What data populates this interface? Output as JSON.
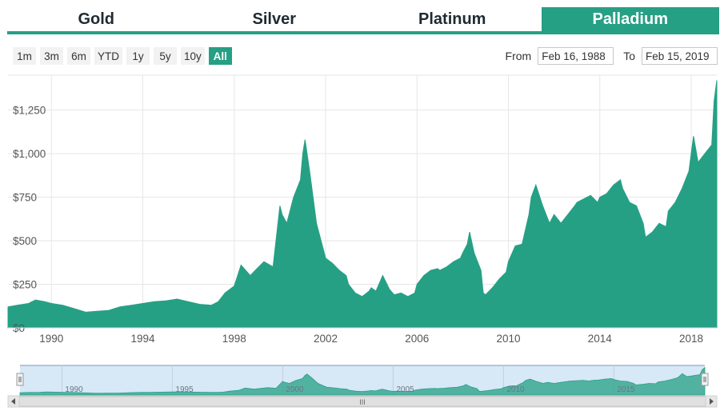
{
  "tabs": [
    {
      "label": "Gold",
      "active": false
    },
    {
      "label": "Silver",
      "active": false
    },
    {
      "label": "Platinum",
      "active": false
    },
    {
      "label": "Palladium",
      "active": true
    }
  ],
  "range_buttons": [
    {
      "label": "1m",
      "active": false
    },
    {
      "label": "3m",
      "active": false
    },
    {
      "label": "6m",
      "active": false
    },
    {
      "label": "YTD",
      "active": false
    },
    {
      "label": "1y",
      "active": false
    },
    {
      "label": "5y",
      "active": false
    },
    {
      "label": "10y",
      "active": false
    },
    {
      "label": "All",
      "active": true
    }
  ],
  "date_range": {
    "from_label": "From",
    "from_value": "Feb 16, 1988",
    "to_label": "To",
    "to_value": "Feb 15, 2019"
  },
  "colors": {
    "accent": "#26a085",
    "navigator_fill": "#d7e8f7"
  },
  "chart_data": {
    "type": "area",
    "series": [
      {
        "color": "#26a085",
        "x": [
          1988.1,
          1988.5,
          1989.0,
          1989.3,
          1989.7,
          1990.0,
          1990.5,
          1991.0,
          1991.5,
          1992.0,
          1992.5,
          1993.0,
          1993.5,
          1994.0,
          1994.5,
          1995.0,
          1995.5,
          1996.0,
          1996.5,
          1997.0,
          1997.3,
          1997.6,
          1998.0,
          1998.3,
          1998.7,
          1999.0,
          1999.3,
          1999.7,
          2000.0,
          2000.1,
          2000.3,
          2000.6,
          2000.9,
          2001.0,
          2001.1,
          2001.3,
          2001.6,
          2001.9,
          2002.0,
          2002.3,
          2002.6,
          2002.9,
          2003.0,
          2003.3,
          2003.6,
          2003.9,
          2004.0,
          2004.2,
          2004.5,
          2004.8,
          2005.0,
          2005.3,
          2005.6,
          2005.9,
          2006.0,
          2006.3,
          2006.6,
          2006.9,
          2007.0,
          2007.3,
          2007.6,
          2007.9,
          2008.0,
          2008.2,
          2008.3,
          2008.5,
          2008.8,
          2008.9,
          2009.0,
          2009.3,
          2009.6,
          2009.9,
          2010.0,
          2010.3,
          2010.6,
          2010.9,
          2011.0,
          2011.2,
          2011.5,
          2011.8,
          2012.0,
          2012.3,
          2012.6,
          2012.9,
          2013.0,
          2013.3,
          2013.6,
          2013.9,
          2014.0,
          2014.3,
          2014.6,
          2014.9,
          2015.0,
          2015.3,
          2015.6,
          2015.9,
          2016.0,
          2016.3,
          2016.6,
          2016.9,
          2017.0,
          2017.3,
          2017.6,
          2017.9,
          2018.0,
          2018.1,
          2018.3,
          2018.6,
          2018.9,
          2019.0,
          2019.12
        ],
        "values": [
          120,
          130,
          140,
          160,
          150,
          140,
          130,
          110,
          90,
          95,
          100,
          120,
          130,
          140,
          150,
          155,
          165,
          150,
          135,
          130,
          150,
          200,
          240,
          360,
          300,
          340,
          380,
          350,
          700,
          650,
          600,
          750,
          850,
          1000,
          1080,
          900,
          600,
          450,
          400,
          370,
          330,
          300,
          250,
          200,
          180,
          210,
          230,
          210,
          300,
          220,
          190,
          200,
          180,
          200,
          250,
          300,
          330,
          340,
          330,
          350,
          380,
          400,
          430,
          480,
          550,
          430,
          330,
          200,
          190,
          230,
          280,
          320,
          380,
          470,
          480,
          650,
          750,
          820,
          700,
          600,
          650,
          600,
          650,
          700,
          720,
          740,
          760,
          720,
          750,
          770,
          820,
          850,
          800,
          720,
          700,
          600,
          520,
          550,
          600,
          580,
          670,
          720,
          800,
          900,
          1000,
          1100,
          950,
          1000,
          1050,
          1300,
          1420
        ]
      }
    ],
    "ylim": [
      0,
      1450
    ],
    "xlim": [
      1988.1,
      2019.12
    ],
    "y_ticks": [
      {
        "value": 0,
        "label": "$0"
      },
      {
        "value": 250,
        "label": "$250"
      },
      {
        "value": 500,
        "label": "$500"
      },
      {
        "value": 750,
        "label": "$750"
      },
      {
        "value": 1000,
        "label": "$1,000"
      },
      {
        "value": 1250,
        "label": "$1,250"
      }
    ],
    "x_ticks": [
      {
        "value": 1990,
        "label": "1990"
      },
      {
        "value": 1994,
        "label": "1994"
      },
      {
        "value": 1998,
        "label": "1998"
      },
      {
        "value": 2002,
        "label": "2002"
      },
      {
        "value": 2006,
        "label": "2006"
      },
      {
        "value": 2010,
        "label": "2010"
      },
      {
        "value": 2014,
        "label": "2014"
      },
      {
        "value": 2018,
        "label": "2018"
      }
    ],
    "navigator_ticks": [
      {
        "value": 1990,
        "label": "1990"
      },
      {
        "value": 1995,
        "label": "1995"
      },
      {
        "value": 2000,
        "label": "2000"
      },
      {
        "value": 2005,
        "label": "2005"
      },
      {
        "value": 2010,
        "label": "2010"
      },
      {
        "value": 2015,
        "label": "2015"
      }
    ],
    "grid": true,
    "scrollbar_grip": "III"
  }
}
